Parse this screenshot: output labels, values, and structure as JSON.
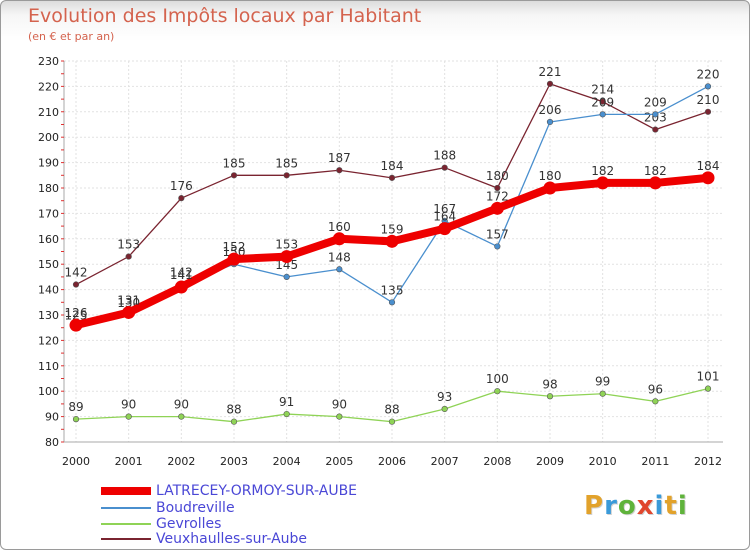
{
  "title": "Evolution des Impôts locaux par Habitant",
  "subtitle": "(en € et par an)",
  "logo": {
    "text": "Proxiti",
    "colors": [
      "#e2a22b",
      "#3a9ad9",
      "#5fb33b",
      "#e0462e",
      "#3a9ad9",
      "#e2a22b",
      "#5fb33b"
    ]
  },
  "chart_data": {
    "type": "line",
    "title": "Evolution des Impôts locaux par Habitant",
    "subtitle": "(en € et par an)",
    "x": [
      2000,
      2001,
      2002,
      2003,
      2004,
      2005,
      2006,
      2007,
      2008,
      2009,
      2010,
      2011,
      2012
    ],
    "x_tick_labels": [
      "2000",
      "2001",
      "2002",
      "2003",
      "2004",
      "2005",
      "2006",
      "2007",
      "2008",
      "2009",
      "2010",
      "2011",
      "2012"
    ],
    "ylim": [
      80,
      230
    ],
    "y_ticks": [
      80,
      90,
      100,
      110,
      120,
      130,
      140,
      150,
      160,
      170,
      180,
      190,
      200,
      210,
      220,
      230
    ],
    "grid": true,
    "legend": "bottom-left",
    "series": [
      {
        "name": "Veuxhaulles-sur-Aube",
        "color": "#7a2430",
        "width": 1.3,
        "marker": 2.8,
        "values": [
          142,
          153,
          176,
          185,
          185,
          187,
          184,
          188,
          180,
          221,
          214,
          203,
          210
        ],
        "labels": [
          "142",
          "153",
          "176",
          "185",
          "185",
          "187",
          "184",
          "188",
          "180",
          "221",
          "214",
          "203",
          "210"
        ]
      },
      {
        "name": "Boudreville",
        "color": "#4a8fce",
        "width": 1.3,
        "marker": 2.8,
        "values": [
          125,
          130,
          142,
          150,
          145,
          148,
          135,
          167,
          157,
          206,
          209,
          209,
          220
        ],
        "labels": [
          "125",
          "130",
          "142",
          "150",
          "145",
          "148",
          "135",
          "167",
          "157",
          "206",
          "209",
          "209",
          "220"
        ]
      },
      {
        "name": "Gevrolles",
        "color": "#8fd356",
        "width": 1.3,
        "marker": 2.8,
        "values": [
          89,
          90,
          90,
          88,
          91,
          90,
          88,
          93,
          100,
          98,
          99,
          96,
          101
        ],
        "labels": [
          "89",
          "90",
          "90",
          "88",
          "91",
          "90",
          "88",
          "93",
          "100",
          "98",
          "99",
          "96",
          "101"
        ]
      },
      {
        "name": "LATRECEY-ORMOY-SUR-AUBE",
        "color": "#ee0000",
        "width": 8,
        "marker": 6.5,
        "values": [
          126,
          131,
          141,
          152,
          153,
          160,
          159,
          164,
          172,
          180,
          182,
          182,
          184
        ],
        "labels": [
          "126",
          "131",
          "141",
          "152",
          "153",
          "160",
          "159",
          "164",
          "172",
          "180",
          "182",
          "182",
          "184"
        ]
      }
    ],
    "legend_entries": [
      {
        "name": "LATRECEY-ORMOY-SUR-AUBE",
        "color": "#ee0000",
        "thickness": 8
      },
      {
        "name": "Boudreville",
        "color": "#4a8fce",
        "thickness": 2
      },
      {
        "name": "Gevrolles",
        "color": "#8fd356",
        "thickness": 2
      },
      {
        "name": "Veuxhaulles-sur-Aube",
        "color": "#7a2430",
        "thickness": 2
      }
    ]
  }
}
